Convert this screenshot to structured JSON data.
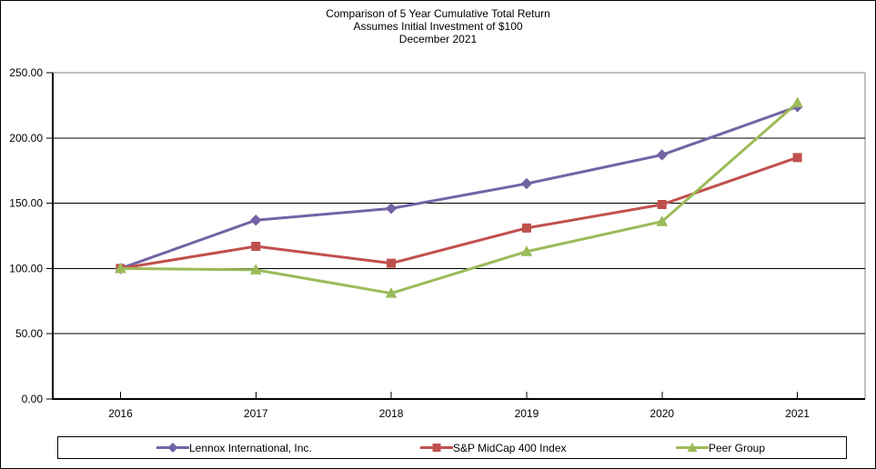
{
  "chart_data": {
    "type": "line",
    "title": "Comparison of 5 Year Cumulative Total Return",
    "subtitle": "Assumes Initial Investment of $100",
    "date_label": "December 2021",
    "categories": [
      "2016",
      "2017",
      "2018",
      "2019",
      "2020",
      "2021"
    ],
    "series": [
      {
        "name": "Lennox International, Inc.",
        "color": "#7463A5",
        "marker": "diamond",
        "values": [
          100,
          137,
          146,
          165,
          187,
          224
        ]
      },
      {
        "name": "S&P MidCap 400 Index",
        "color": "#C0504D",
        "marker": "square",
        "values": [
          100,
          117,
          104,
          131,
          149,
          185
        ]
      },
      {
        "name": "Peer Group",
        "color": "#9BBB59",
        "marker": "triangle",
        "values": [
          100,
          99,
          81,
          113,
          136,
          227
        ]
      }
    ],
    "y_axis": {
      "min": 0,
      "max": 250,
      "ticks": [
        {
          "value": 250,
          "label": "250.00"
        },
        {
          "value": 200,
          "label": "200.00"
        },
        {
          "value": 150,
          "label": "150.00"
        },
        {
          "value": 100,
          "label": "100.00"
        },
        {
          "value": 50,
          "label": "50.00"
        },
        {
          "value": 0,
          "label": "0.00"
        }
      ]
    },
    "grid": true,
    "legend_position": "bottom",
    "colors": {
      "axis": "#000000",
      "gridline": "#000000",
      "plot_border": "#808080",
      "text": "#000000"
    },
    "legend_offsets": [
      108,
      398,
      679
    ]
  }
}
